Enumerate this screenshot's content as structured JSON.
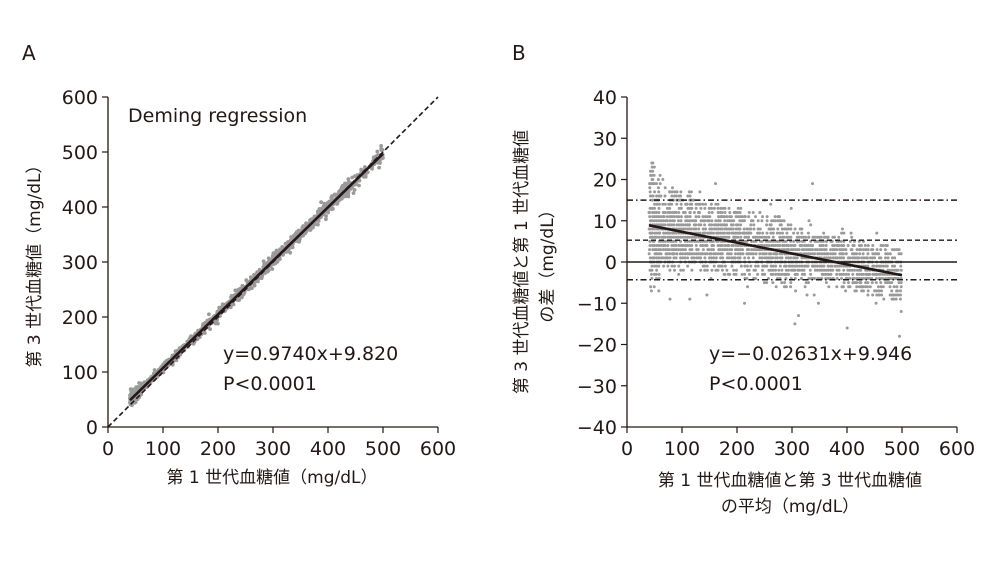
{
  "chart_data": [
    {
      "panel": "A",
      "type": "scatter",
      "method_label": "Deming regression",
      "equation": "y=0.9740x+9.820",
      "p_value": "P<0.0001",
      "xlabel": "第 1 世代血糖値（mg/dL）",
      "ylabel": "第 3 世代血糖値（mg/dL）",
      "xlim": [
        0,
        600
      ],
      "ylim": [
        0,
        600
      ],
      "xticks": [
        "0",
        "100",
        "200",
        "300",
        "400",
        "500",
        "600"
      ],
      "yticks": [
        "0",
        "100",
        "200",
        "300",
        "400",
        "500",
        "600"
      ],
      "regression": {
        "slope": 0.974,
        "intercept": 9.82,
        "x_range": [
          40,
          500
        ]
      },
      "identity_line": {
        "slope": 1,
        "intercept": 0,
        "style": "dashed"
      },
      "point_cloud_x_range": [
        40,
        500
      ],
      "point_color": "#9a9a9a"
    },
    {
      "panel": "B",
      "type": "scatter",
      "equation": "y=−0.02631x+9.946",
      "p_value": "P<0.0001",
      "xlabel": [
        "第 1 世代血糖値と第 3 世代血糖値",
        "の平均（mg/dL）"
      ],
      "ylabel": [
        "第 3 世代血糖値と第 1 世代血糖値",
        "の差（mg/dL）"
      ],
      "xlim": [
        0,
        600
      ],
      "ylim": [
        -40,
        40
      ],
      "xticks": [
        "0",
        "100",
        "200",
        "300",
        "400",
        "500",
        "600"
      ],
      "yticks": [
        "40",
        "30",
        "20",
        "10",
        "0",
        "−10",
        "−20",
        "−30",
        "−40"
      ],
      "regression": {
        "slope": -0.02631,
        "intercept": 9.946,
        "x_range": [
          40,
          500
        ]
      },
      "reference_lines": [
        {
          "y": 15.0,
          "style": "dash-dot"
        },
        {
          "y": 5.3,
          "style": "dashed"
        },
        {
          "y": 0,
          "style": "solid"
        },
        {
          "y": -4.3,
          "style": "dash-dot"
        }
      ],
      "point_cloud_x_range": [
        40,
        500
      ],
      "point_color": "#9a9a9a"
    }
  ]
}
